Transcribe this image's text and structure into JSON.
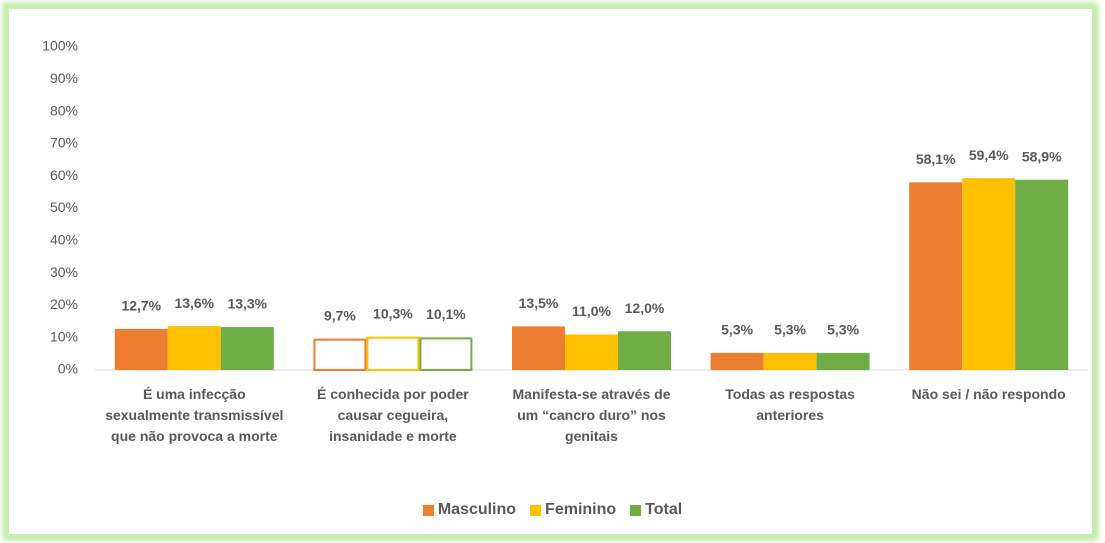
{
  "chart_data": {
    "type": "bar",
    "categories": [
      "É uma infecção sexualmente transmissível que não provoca a morte",
      "É conhecida por poder causar cegueira, insanidade e morte",
      "Manifesta-se através de um “cancro duro” nos genitais",
      "Todas as respostas anteriores",
      "Não sei / não respondo"
    ],
    "series": [
      {
        "name": "Masculino",
        "color": "#ed7d31",
        "values": [
          12.7,
          9.7,
          13.5,
          5.3,
          58.1
        ],
        "value_labels": [
          "12,7%",
          "9,7%",
          "13,5%",
          "5,3%",
          "58,1%"
        ]
      },
      {
        "name": "Feminino",
        "color": "#ffc000",
        "values": [
          13.6,
          10.3,
          11.0,
          5.3,
          59.4
        ],
        "value_labels": [
          "13,6%",
          "10,3%",
          "11,0%",
          "5,3%",
          "59,4%"
        ]
      },
      {
        "name": "Total",
        "color": "#70ad47",
        "values": [
          13.3,
          10.1,
          12.0,
          5.3,
          58.9
        ],
        "value_labels": [
          "13,3%",
          "10,1%",
          "12,0%",
          "5,3%",
          "58,9%"
        ]
      }
    ],
    "ylim": [
      0,
      100
    ],
    "yticks": [
      {
        "value": 0,
        "label": "0%"
      },
      {
        "value": 10,
        "label": "10%"
      },
      {
        "value": 20,
        "label": "20%"
      },
      {
        "value": 30,
        "label": "30%"
      },
      {
        "value": 40,
        "label": "40%"
      },
      {
        "value": 50,
        "label": "50%"
      },
      {
        "value": 60,
        "label": "60%"
      },
      {
        "value": 70,
        "label": "70%"
      },
      {
        "value": 80,
        "label": "80%"
      },
      {
        "value": 90,
        "label": "90%"
      },
      {
        "value": 100,
        "label": "100%"
      }
    ],
    "outlined_categories": [
      1
    ],
    "legend": "bottom"
  }
}
